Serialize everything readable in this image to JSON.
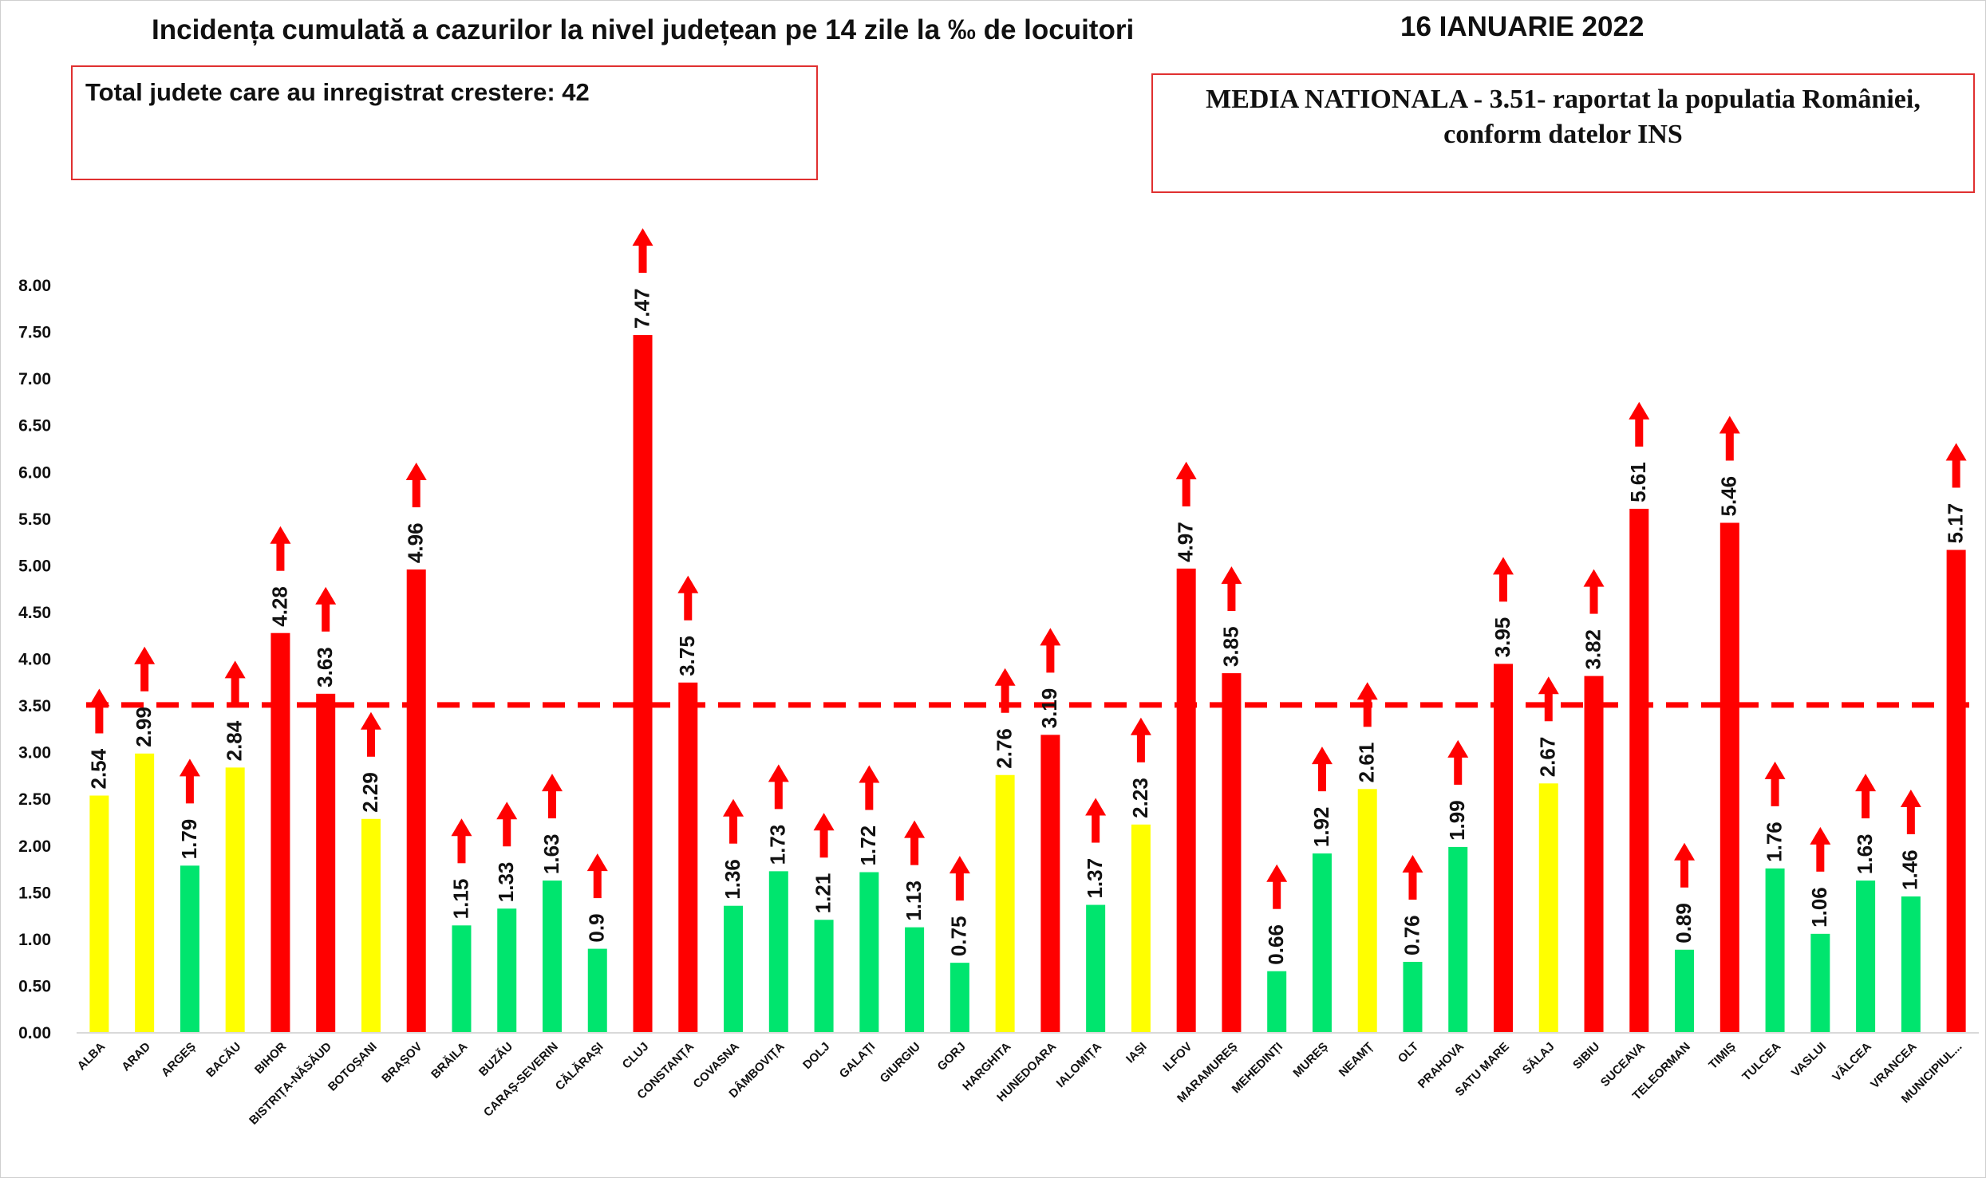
{
  "title": "Incidența cumulată a cazurilor la nivel județean pe 14 zile la ‰ de locuitori",
  "date": "16 IANUARIE 2022",
  "info_left": "Total judete care au inregistrat crestere: 42",
  "info_right_line1": "MEDIA NATIONALA - 3.51-  raportat la populatia României,",
  "info_right_line2": "conform datelor INS",
  "colors": {
    "red": "#ff0000",
    "yellow": "#ffff00",
    "green": "#00e56e",
    "arrow": "#ff0000",
    "reference_line": "#ff0000"
  },
  "chart_data": {
    "type": "bar",
    "title": "Incidența cumulată a cazurilor la nivel județean pe 14 zile la ‰ de locuitori",
    "xlabel": "",
    "ylabel": "",
    "ylim": [
      0,
      8
    ],
    "yticks": [
      "0.00",
      "0.50",
      "1.00",
      "1.50",
      "2.00",
      "2.50",
      "3.00",
      "3.50",
      "4.00",
      "4.50",
      "5.00",
      "5.50",
      "6.00",
      "6.50",
      "7.00",
      "7.50",
      "8.00"
    ],
    "grid": false,
    "legend": "none",
    "reference_line": {
      "value": 3.51,
      "style": "dashed"
    },
    "trend_indicator": "up-arrow above every bar",
    "categories": [
      "ALBA",
      "ARAD",
      "ARGEȘ",
      "BACĂU",
      "BIHOR",
      "BISTRIȚA-NĂSĂUD",
      "BOTOȘANI",
      "BRAȘOV",
      "BRĂILA",
      "BUZĂU",
      "CARAȘ-SEVERIN",
      "CĂLĂRAȘI",
      "CLUJ",
      "CONSTANȚA",
      "COVASNA",
      "DÂMBOVIȚA",
      "DOLJ",
      "GALAȚI",
      "GIURGIU",
      "GORJ",
      "HARGHITA",
      "HUNEDOARA",
      "IALOMIȚA",
      "IAȘI",
      "ILFOV",
      "MARAMUREȘ",
      "MEHEDINȚI",
      "MUREȘ",
      "NEAMȚ",
      "OLT",
      "PRAHOVA",
      "SATU MARE",
      "SĂLAJ",
      "SIBIU",
      "SUCEAVA",
      "TELEORMAN",
      "TIMIȘ",
      "TULCEA",
      "VASLUI",
      "VÂLCEA",
      "VRANCEA",
      "MUNICIPIUL..."
    ],
    "values": [
      2.54,
      2.99,
      1.79,
      2.84,
      4.28,
      3.63,
      2.29,
      4.96,
      1.15,
      1.33,
      1.63,
      0.9,
      7.47,
      3.75,
      1.36,
      1.73,
      1.21,
      1.72,
      1.13,
      0.75,
      2.76,
      3.19,
      1.37,
      2.23,
      4.97,
      3.85,
      0.66,
      1.92,
      2.61,
      0.76,
      1.99,
      3.95,
      2.67,
      3.82,
      5.61,
      0.89,
      5.46,
      1.76,
      1.06,
      1.63,
      1.46,
      5.17
    ],
    "value_labels": [
      "2.54",
      "2.99",
      "1.79",
      "2.84",
      "4.28",
      "3.63",
      "2.29",
      "4.96",
      "1.15",
      "1.33",
      "1.63",
      "0.9",
      "7.47",
      "3.75",
      "1.36",
      "1.73",
      "1.21",
      "1.72",
      "1.13",
      "0.75",
      "2.76",
      "3.19",
      "1.37",
      "2.23",
      "4.97",
      "3.85",
      "0.66",
      "1.92",
      "2.61",
      "0.76",
      "1.99",
      "3.95",
      "2.67",
      "3.82",
      "5.61",
      "0.89",
      "5.46",
      "1.76",
      "1.06",
      "1.63",
      "1.46",
      "5.17"
    ],
    "bar_colors": [
      "yellow",
      "yellow",
      "green",
      "yellow",
      "red",
      "red",
      "yellow",
      "red",
      "green",
      "green",
      "green",
      "green",
      "red",
      "red",
      "green",
      "green",
      "green",
      "green",
      "green",
      "green",
      "yellow",
      "red",
      "green",
      "yellow",
      "red",
      "red",
      "green",
      "green",
      "yellow",
      "green",
      "green",
      "red",
      "yellow",
      "red",
      "red",
      "green",
      "red",
      "green",
      "green",
      "green",
      "green",
      "red"
    ]
  }
}
